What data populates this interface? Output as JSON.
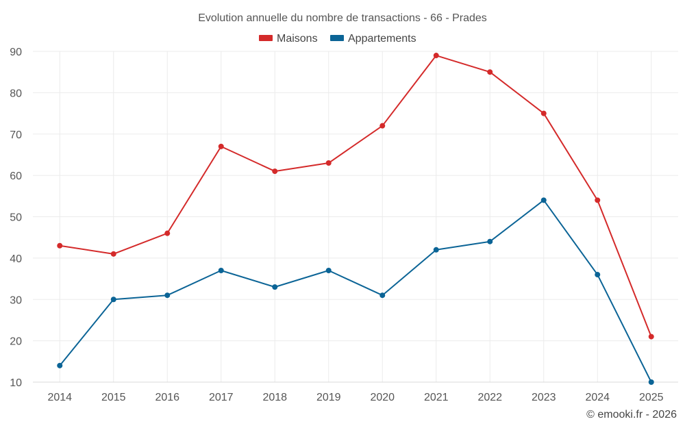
{
  "chart_data": {
    "type": "line",
    "title": "Evolution annuelle du nombre de transactions - 66 - Prades",
    "categories": [
      "2014",
      "2015",
      "2016",
      "2017",
      "2018",
      "2019",
      "2020",
      "2021",
      "2022",
      "2023",
      "2024",
      "2025"
    ],
    "series": [
      {
        "name": "Maisons",
        "color": "#d42a2a",
        "values": [
          43,
          41,
          46,
          67,
          61,
          63,
          72,
          89,
          85,
          75,
          54,
          21
        ]
      },
      {
        "name": "Appartements",
        "color": "#0b6496",
        "values": [
          14,
          30,
          31,
          37,
          33,
          37,
          31,
          42,
          44,
          54,
          36,
          10
        ]
      }
    ],
    "ylim": [
      10,
      90
    ],
    "yticks": [
      10,
      20,
      30,
      40,
      50,
      60,
      70,
      80,
      90
    ],
    "xlabel": "",
    "ylabel": "",
    "grid": true,
    "legend": "top-center"
  },
  "credit": "© emooki.fr - 2026"
}
